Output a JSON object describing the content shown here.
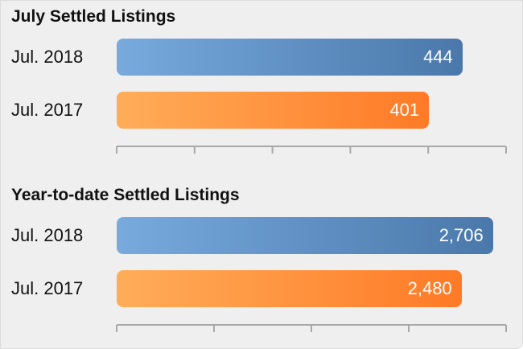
{
  "charts": [
    {
      "title": "July Settled Listings"
    },
    {
      "title": "Year-to-date Settled Listings"
    }
  ],
  "chart_data": [
    {
      "type": "bar",
      "orientation": "horizontal",
      "title": "July Settled Listings",
      "categories": [
        "Jul. 2018",
        "Jul. 2017"
      ],
      "values": [
        444,
        401
      ],
      "value_labels": [
        "444",
        "401"
      ],
      "colors": [
        "#5b8cc2",
        "#ff8c38"
      ],
      "xlim": [
        0,
        500
      ],
      "ticks": 5,
      "grid": false,
      "legend": "none"
    },
    {
      "type": "bar",
      "orientation": "horizontal",
      "title": "Year-to-date Settled Listings",
      "categories": [
        "Jul. 2018",
        "Jul. 2017"
      ],
      "values": [
        2706,
        2480
      ],
      "value_labels": [
        "2,706",
        "2,480"
      ],
      "colors": [
        "#5b8cc2",
        "#ff8c38"
      ],
      "xlim": [
        0,
        2800
      ],
      "ticks": 4,
      "grid": false,
      "legend": "none"
    }
  ]
}
